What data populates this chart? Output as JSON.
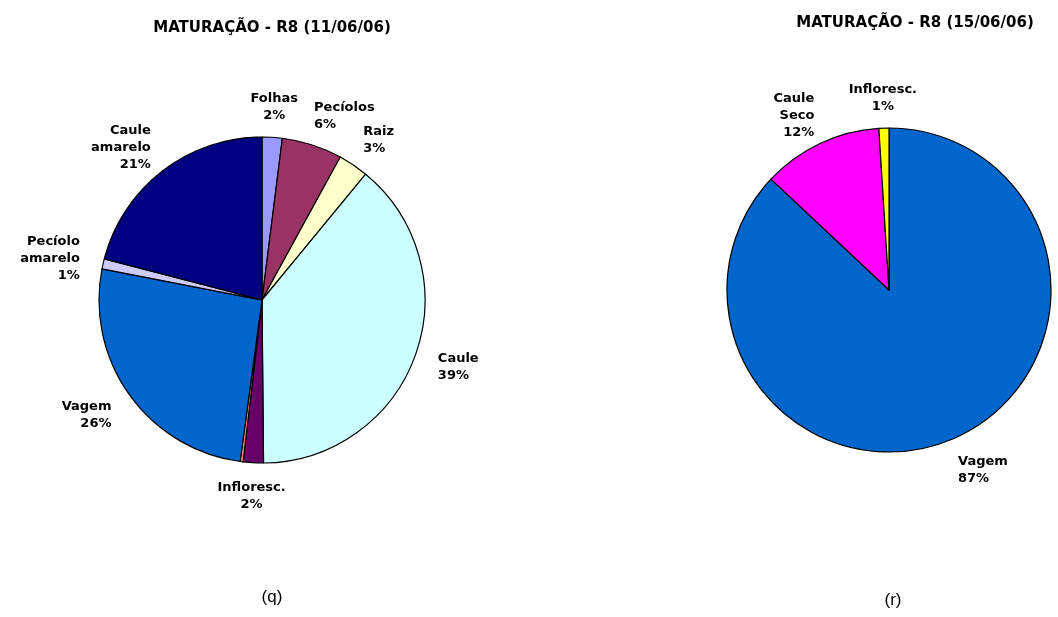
{
  "chart_data": [
    {
      "type": "pie",
      "title": "MATURAÇÃO - R8 (11/06/06)",
      "categories": [
        "Folhas",
        "Pecíolos",
        "Raiz",
        "Caule",
        "Infloresc.",
        null,
        "Vagem",
        "Pecíolo amarelo",
        "Caule amarelo"
      ],
      "values": [
        2,
        6,
        3,
        39,
        2,
        0.3,
        26,
        1,
        21
      ],
      "value_labels": [
        "2%",
        "6%",
        "3%",
        "39%",
        "2%",
        null,
        "26%",
        "1%",
        "21%"
      ],
      "colors": [
        "#9999ff",
        "#993366",
        "#ffffcc",
        "#ccffff",
        "#660066",
        "#ff8080",
        "#0066cc",
        "#ccccff",
        "#000080"
      ],
      "annotations": [
        "(q)"
      ]
    },
    {
      "type": "pie",
      "title": "MATURAÇÃO - R8 (15/06/06)",
      "categories": [
        "Vagem",
        "Caule Seco",
        "Infloresc."
      ],
      "values": [
        87,
        12,
        1
      ],
      "value_labels": [
        "87%",
        "12%",
        "1%"
      ],
      "colors": [
        "#0066cc",
        "#ff00ff",
        "#ffff00"
      ],
      "annotations": [
        "(r)"
      ]
    }
  ]
}
